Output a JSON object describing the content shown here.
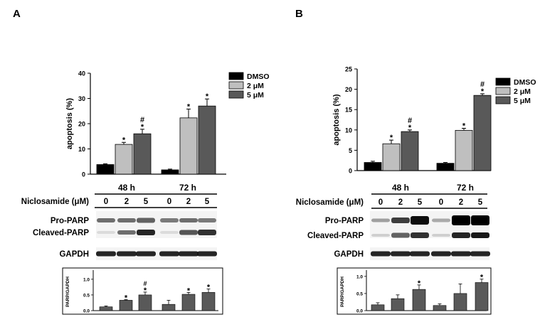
{
  "panels": [
    {
      "letter": "A",
      "drug_label": "Niclosamide (μM)",
      "time_labels": [
        "48 h",
        "72 h"
      ],
      "doses": [
        "0",
        "2",
        "5",
        "0",
        "2",
        "5"
      ],
      "band_labels": [
        "Pro-PARP",
        "Cleaved-PARP",
        "GAPDH"
      ],
      "top_marks": [
        "",
        "*",
        "*#",
        "",
        "*",
        "*"
      ],
      "bottom_marks": [
        "",
        "*",
        "*#",
        "",
        "*",
        "*"
      ]
    },
    {
      "letter": "B",
      "drug_label": "Niclosamide (μM)",
      "time_labels": [
        "48 h",
        "72 h"
      ],
      "doses": [
        "0",
        "2",
        "5",
        "0",
        "2",
        "5"
      ],
      "band_labels": [
        "Pro-PARP",
        "Cleaved-PARP",
        "GAPDH"
      ],
      "top_marks": [
        "",
        "*",
        "*#",
        "",
        "*",
        "*#"
      ],
      "bottom_marks": [
        "",
        "",
        "*",
        "",
        "",
        "*"
      ]
    }
  ],
  "chart_data": [
    {
      "type": "bar",
      "panel": "A",
      "ylabel": "apoptosis (%)",
      "ylim": [
        0,
        40
      ],
      "yticks": [
        "0",
        "10",
        "20",
        "30",
        "40"
      ],
      "categories": [
        "48 h",
        "72 h"
      ],
      "legend": {
        "position": "top-right"
      },
      "series": [
        {
          "name": "DMSO",
          "values": [
            3.8,
            1.7
          ],
          "errors": [
            0.3,
            0.3
          ],
          "color": "#000000"
        },
        {
          "name": "2 μM",
          "values": [
            11.8,
            22.3
          ],
          "errors": [
            0.8,
            3.5
          ],
          "color": "#bfbfbf"
        },
        {
          "name": "5 μM",
          "values": [
            16.0,
            27.0
          ],
          "errors": [
            1.8,
            2.8
          ],
          "color": "#595959"
        }
      ]
    },
    {
      "type": "bar",
      "panel": "A",
      "ylabel": "PARP/GAPDH",
      "ylim": [
        0,
        1.2
      ],
      "yticks": [
        "0.0",
        "0.5",
        "1.0"
      ],
      "categories": [
        "0",
        "2",
        "5",
        "0",
        "2",
        "5"
      ],
      "values": [
        0.12,
        0.33,
        0.5,
        0.2,
        0.52,
        0.58
      ],
      "errors": [
        0.03,
        0.02,
        0.09,
        0.13,
        0.06,
        0.11
      ],
      "color": "#595959"
    },
    {
      "type": "bar",
      "panel": "B",
      "ylabel": "apoptosis (%)",
      "ylim": [
        0,
        25
      ],
      "yticks": [
        "0",
        "5",
        "10",
        "15",
        "20",
        "25"
      ],
      "categories": [
        "48 h",
        "72 h"
      ],
      "legend": {
        "position": "top-right"
      },
      "series": [
        {
          "name": "DMSO",
          "values": [
            2.0,
            1.8
          ],
          "errors": [
            0.3,
            0.2
          ],
          "color": "#000000"
        },
        {
          "name": "2 μM",
          "values": [
            6.6,
            9.9
          ],
          "errors": [
            0.9,
            0.5
          ],
          "color": "#bfbfbf"
        },
        {
          "name": "5 μM",
          "values": [
            9.6,
            18.5
          ],
          "errors": [
            0.4,
            0.4
          ],
          "color": "#595959"
        }
      ]
    },
    {
      "type": "bar",
      "panel": "B",
      "ylabel": "PARP/GAPDH",
      "ylim": [
        0,
        1.1
      ],
      "yticks": [
        "0.0",
        "0.5",
        "1.0"
      ],
      "categories": [
        "0",
        "2",
        "5",
        "0",
        "2",
        "5"
      ],
      "values": [
        0.17,
        0.35,
        0.62,
        0.15,
        0.5,
        0.82
      ],
      "errors": [
        0.06,
        0.11,
        0.13,
        0.05,
        0.28,
        0.1
      ],
      "color": "#595959"
    }
  ]
}
